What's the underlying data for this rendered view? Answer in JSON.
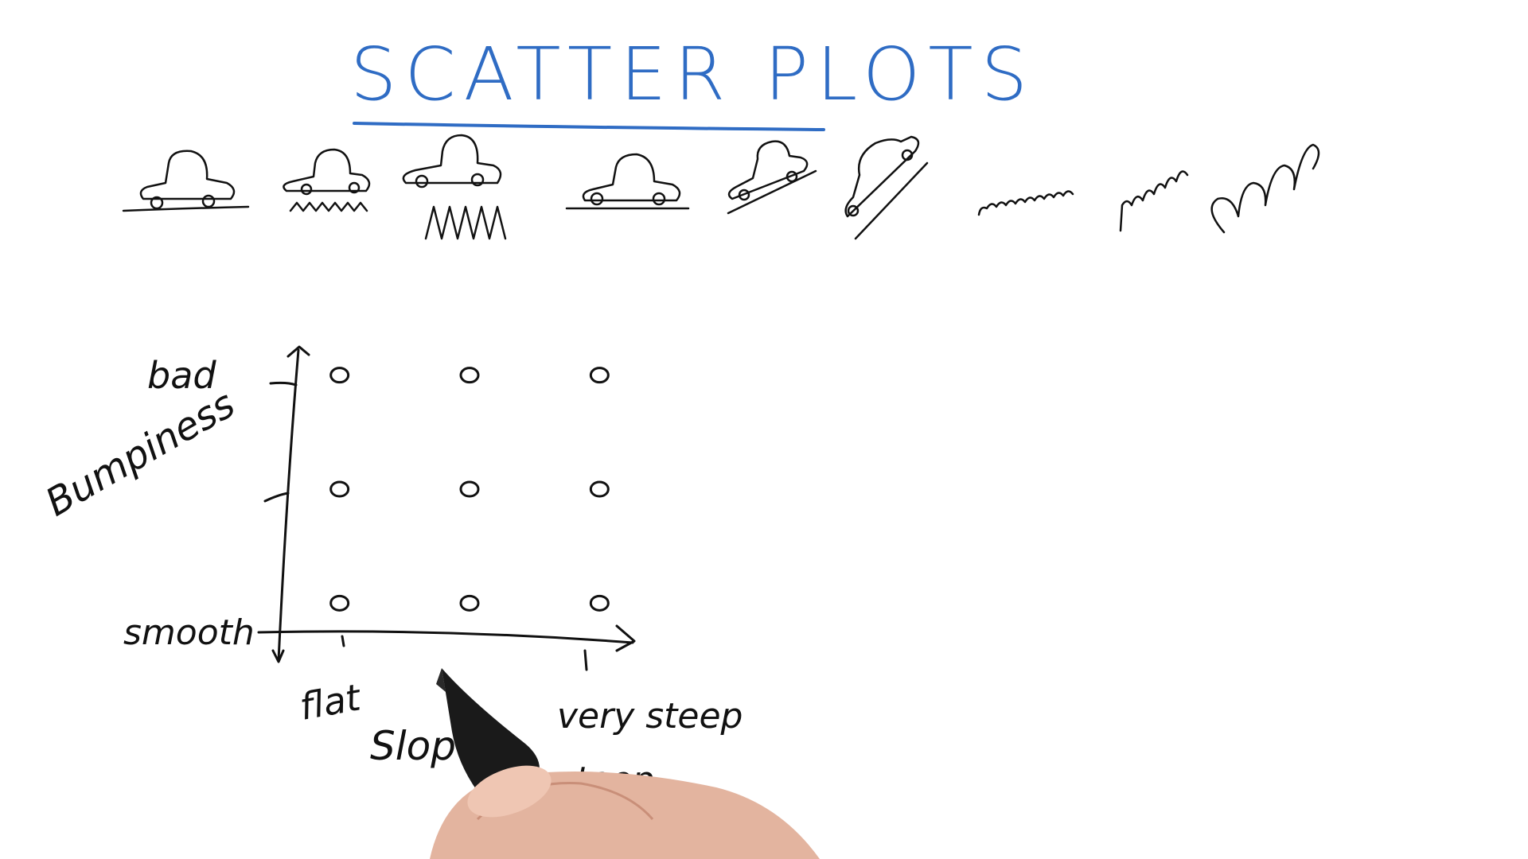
{
  "title": "SCATTER PLOTS",
  "colors": {
    "title": "#2f6cc4",
    "ink": "#111111",
    "background": "#ffffff"
  },
  "icons": [
    "car-flat-smooth-icon",
    "car-flat-slightly-bumpy-icon",
    "car-flat-very-bumpy-icon",
    "car-flat-icon",
    "car-slope-icon",
    "car-steep-icon",
    "road-slightly-bumpy-icon",
    "road-bumpy-slope-icon",
    "road-very-bumpy-steep-icon"
  ],
  "chart_data": {
    "type": "scatter",
    "xlabel": "Slope",
    "ylabel": "Bumpiness",
    "x_ticks": [
      "flat",
      "",
      "very steep"
    ],
    "y_ticks": [
      "smooth",
      "",
      "bad"
    ],
    "x_tick_bottom": "steep",
    "points": [
      {
        "x": 1,
        "y": 3
      },
      {
        "x": 2,
        "y": 3
      },
      {
        "x": 3,
        "y": 3
      },
      {
        "x": 1,
        "y": 2
      },
      {
        "x": 2,
        "y": 2
      },
      {
        "x": 3,
        "y": 2
      },
      {
        "x": 1,
        "y": 1
      },
      {
        "x": 2,
        "y": 1
      },
      {
        "x": 3,
        "y": 1
      }
    ],
    "xlim": [
      0.5,
      3.5
    ],
    "ylim": [
      0.5,
      3.5
    ],
    "grid": false,
    "legend": "none"
  }
}
